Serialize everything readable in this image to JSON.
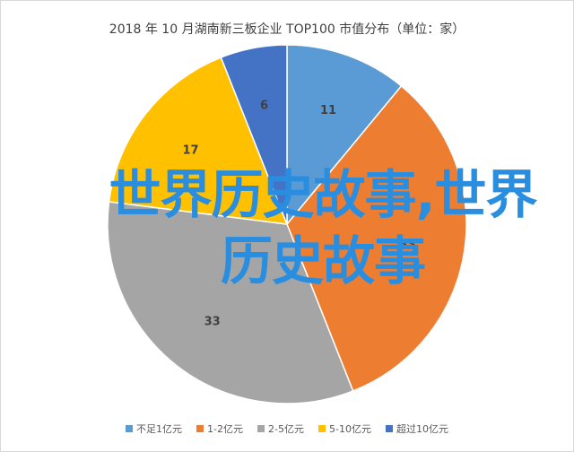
{
  "chart_data": {
    "type": "pie",
    "title": "2018 年 10 月湖南新三板企业 TOP100 市值分布（单位：家）",
    "categories": [
      "不足1亿元",
      "1-2亿元",
      "2-5亿元",
      "5-10亿元",
      "超过10亿元"
    ],
    "values": [
      11,
      33,
      33,
      17,
      6
    ],
    "colors": [
      "#5b9bd5",
      "#ed7d31",
      "#a5a5a5",
      "#ffc000",
      "#4472c4"
    ],
    "legend": "bottom"
  },
  "overlay": {
    "text": "世界历史故事,世界历史故事"
  }
}
